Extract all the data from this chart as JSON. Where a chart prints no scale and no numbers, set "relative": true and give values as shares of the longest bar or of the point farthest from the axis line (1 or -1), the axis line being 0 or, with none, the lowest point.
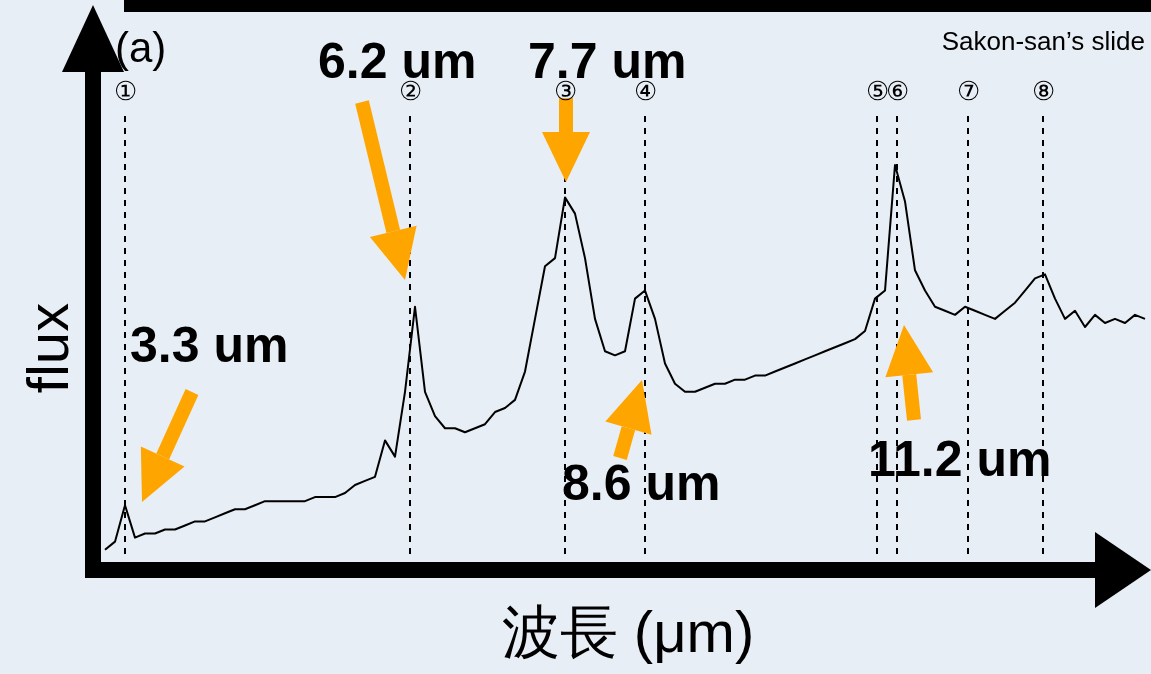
{
  "chart_data": {
    "type": "line",
    "relative": true,
    "xlabel": "波長 (μm)",
    "ylabel": "flux",
    "categories": [
      null,
      null,
      null,
      null,
      null,
      null,
      null,
      null,
      null,
      null,
      null,
      null,
      null,
      null,
      null,
      null,
      null,
      null,
      null,
      null,
      null,
      null,
      null,
      null,
      null,
      null,
      null,
      null,
      null,
      null,
      null,
      null,
      null,
      null,
      null,
      null,
      null,
      null,
      null,
      null,
      null,
      null,
      null,
      null,
      null,
      null,
      null,
      null,
      null,
      null,
      null,
      null,
      null,
      null,
      null,
      null,
      null,
      null,
      null,
      null,
      null,
      null,
      null,
      null,
      null,
      null,
      null,
      null,
      null,
      null,
      null,
      null,
      null,
      null,
      null,
      null,
      null,
      null,
      null,
      null,
      null,
      null,
      null,
      null,
      null,
      null,
      null,
      null,
      null,
      null,
      null,
      null,
      null,
      null,
      null,
      null,
      null,
      null,
      null,
      null,
      null,
      null,
      null,
      null,
      null
    ],
    "series": [
      {
        "color": "#000000",
        "values": [
          0.05,
          0.07,
          0.16,
          0.08,
          0.09,
          0.09,
          0.1,
          0.1,
          0.11,
          0.12,
          0.12,
          0.13,
          0.14,
          0.15,
          0.15,
          0.16,
          0.17,
          0.17,
          0.17,
          0.17,
          0.17,
          0.18,
          0.18,
          0.18,
          0.19,
          0.21,
          0.22,
          0.23,
          0.32,
          0.28,
          0.44,
          0.65,
          0.44,
          0.38,
          0.35,
          0.35,
          0.34,
          0.35,
          0.36,
          0.39,
          0.4,
          0.42,
          0.49,
          0.62,
          0.75,
          0.77,
          0.92,
          0.88,
          0.77,
          0.62,
          0.54,
          0.53,
          0.54,
          0.67,
          0.69,
          0.62,
          0.51,
          0.46,
          0.44,
          0.44,
          0.45,
          0.46,
          0.46,
          0.47,
          0.47,
          0.48,
          0.48,
          0.49,
          0.5,
          0.51,
          0.52,
          0.53,
          0.54,
          0.55,
          0.56,
          0.57,
          0.59,
          0.67,
          0.69,
          1,
          0.91,
          0.74,
          0.69,
          0.65,
          0.64,
          0.63,
          0.65,
          0.64,
          0.63,
          0.62,
          0.64,
          0.66,
          0.69,
          0.72,
          0.73,
          0.67,
          0.62,
          0.64,
          0.6,
          0.63,
          0.61,
          0.62,
          0.61,
          0.63,
          0.62
        ]
      }
    ],
    "annotations": [
      "(a)",
      "Sakon-san’s slide",
      "3.3 um",
      "6.2 um",
      "7.7 um",
      "8.6 um",
      "11.2 um",
      "①",
      "②",
      "③",
      "④",
      "⑤",
      "⑥",
      "⑦",
      "⑧"
    ],
    "grid": "x"
  }
}
